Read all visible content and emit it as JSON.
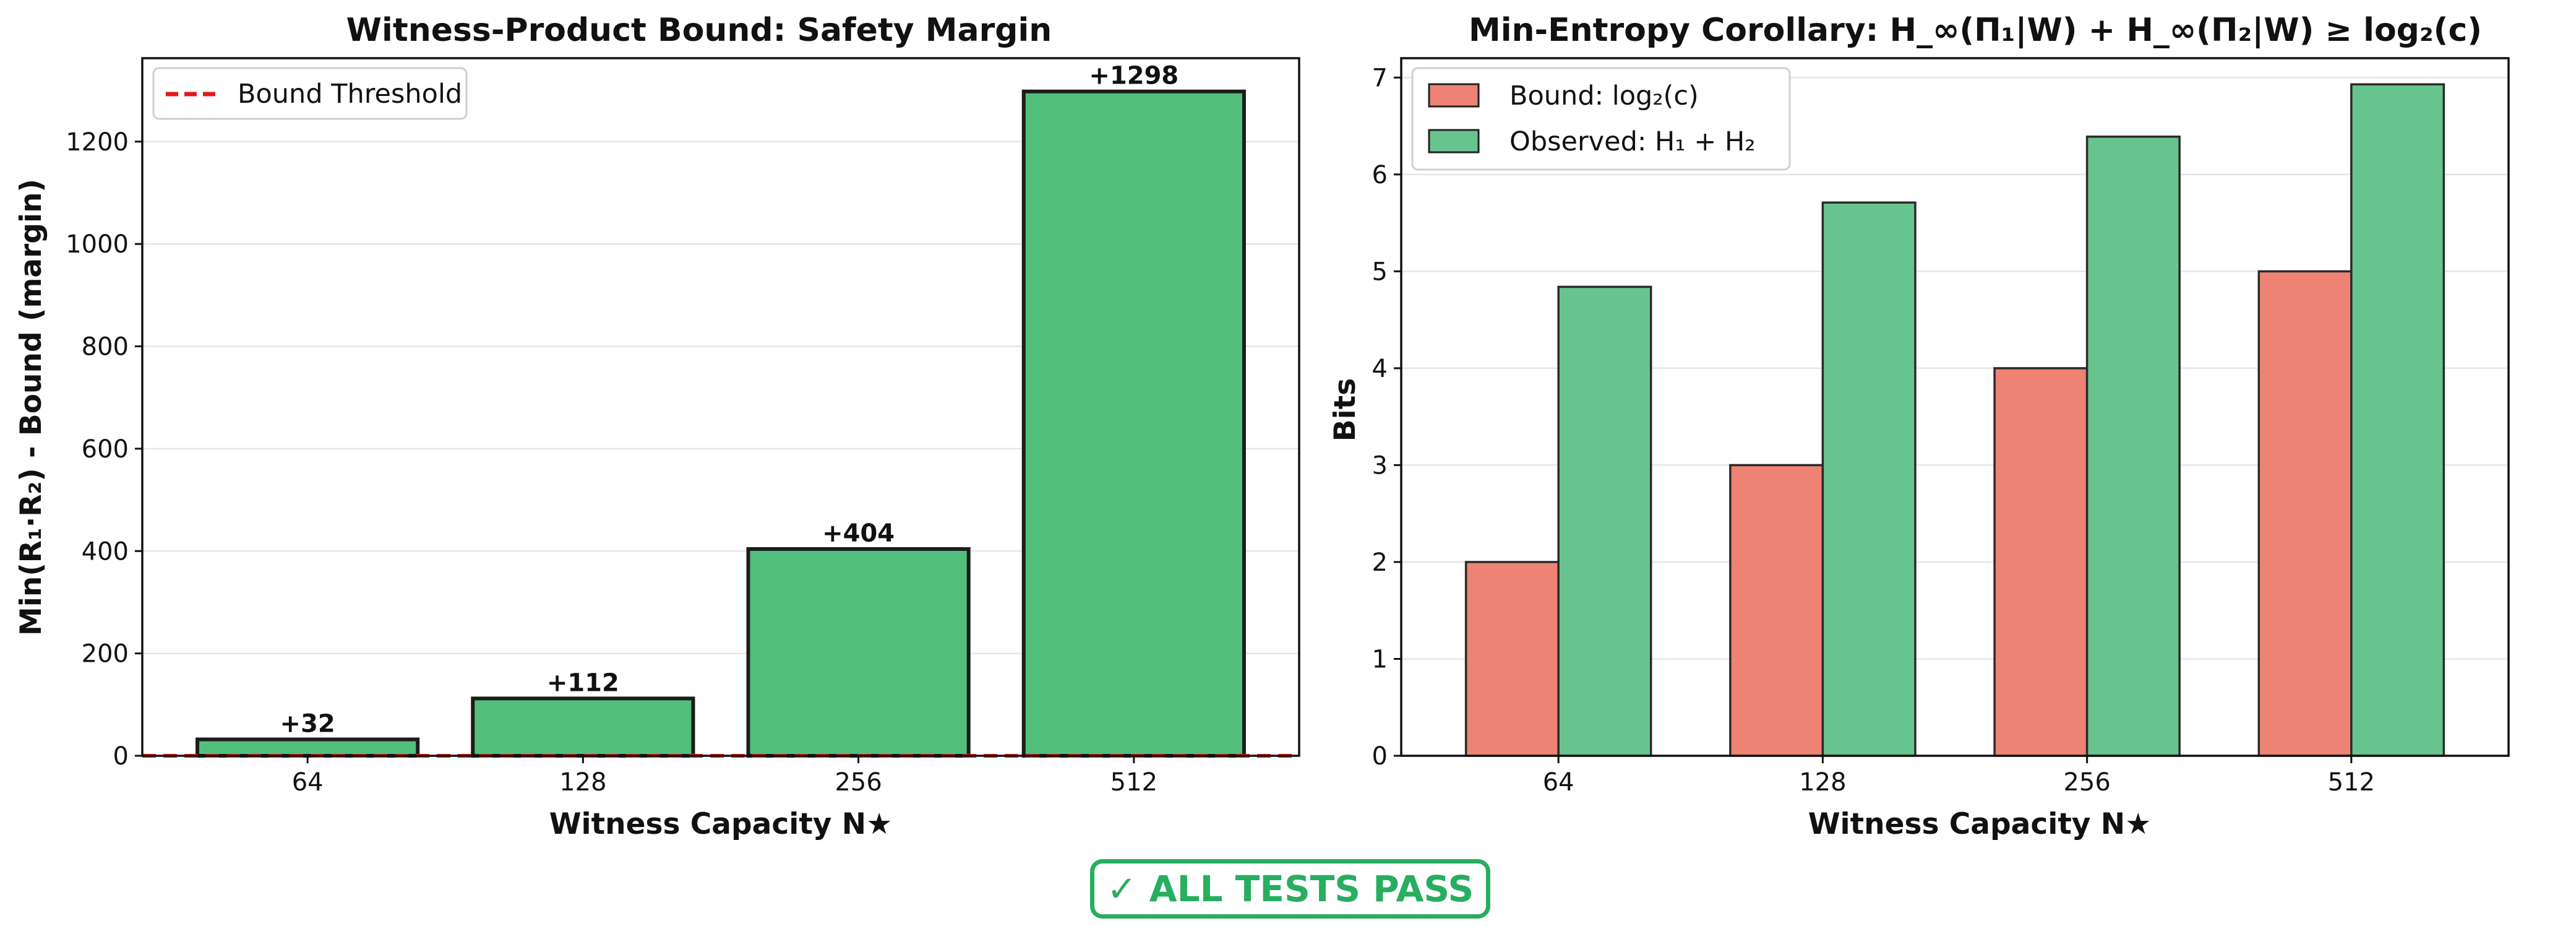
{
  "chart_data": [
    {
      "type": "bar",
      "title": "Witness-Product Bound: Safety Margin",
      "xlabel": "Witness Capacity N★",
      "ylabel": "Min(R₁·R₂) - Bound (margin)",
      "categories": [
        "64",
        "128",
        "256",
        "512"
      ],
      "series": [
        {
          "values": [
            32,
            112,
            404,
            1298
          ],
          "color": "#52bf7c"
        }
      ],
      "data_labels": [
        "+32",
        "+112",
        "+404",
        "+1298"
      ],
      "reference_line": {
        "name": "Bound Threshold",
        "y": 0,
        "color": "#e31a1c",
        "style": "dashed"
      },
      "ylim": [
        0,
        1363
      ],
      "yticks": [
        0,
        200,
        400,
        600,
        800,
        1000,
        1200
      ],
      "grid": "y",
      "legend": "top-left"
    },
    {
      "type": "bar",
      "title": "Min-Entropy Corollary: H_∞(Π₁|W) + H_∞(Π₂|W) ≥ log₂(c)",
      "xlabel": "Witness Capacity N★",
      "ylabel": "Bits",
      "categories": [
        "64",
        "128",
        "256",
        "512"
      ],
      "series": [
        {
          "name": "Bound: log₂(c)",
          "values": [
            2,
            3,
            4,
            5
          ],
          "color": "#ee8275"
        },
        {
          "name": "Observed: H₁ + H₂",
          "values": [
            4.84,
            5.71,
            6.39,
            6.93
          ],
          "color": "#67c48e"
        }
      ],
      "ylim": [
        0,
        7.2
      ],
      "yticks": [
        0,
        1,
        2,
        3,
        4,
        5,
        6,
        7
      ],
      "grid": "y",
      "legend": "top-left"
    }
  ],
  "status": {
    "text": "✓ ALL TESTS PASS",
    "color": "#27ae60"
  }
}
